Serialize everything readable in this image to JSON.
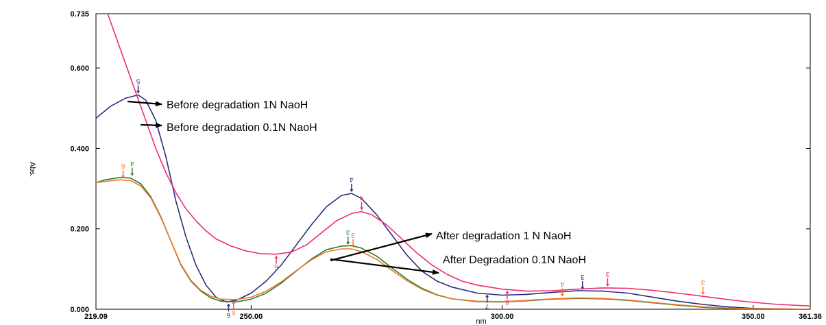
{
  "chart_data": {
    "type": "line",
    "xlabel": "nm",
    "ylabel": "Abs.",
    "xlim": [
      219.09,
      361.36
    ],
    "ylim": [
      0.0,
      0.735
    ],
    "x_ticks": [
      {
        "value": 219.09,
        "label": "219.09"
      },
      {
        "value": 250.0,
        "label": "250.00"
      },
      {
        "value": 300.0,
        "label": "300.00"
      },
      {
        "value": 350.0,
        "label": "350.00"
      },
      {
        "value": 361.36,
        "label": "361.36"
      }
    ],
    "y_ticks": [
      {
        "value": 0.0,
        "label": "0.000"
      },
      {
        "value": 0.2,
        "label": "0.200"
      },
      {
        "value": 0.4,
        "label": "0.400"
      },
      {
        "value": 0.6,
        "label": "0.600"
      },
      {
        "value": 0.735,
        "label": "0.735"
      }
    ],
    "grid": false,
    "series": [
      {
        "color": "#2b2b7a",
        "points": [
          [
            219.09,
            0.475
          ],
          [
            222,
            0.505
          ],
          [
            225,
            0.525
          ],
          [
            227.5,
            0.533
          ],
          [
            229,
            0.52
          ],
          [
            231,
            0.47
          ],
          [
            233,
            0.38
          ],
          [
            235,
            0.27
          ],
          [
            237,
            0.18
          ],
          [
            239,
            0.11
          ],
          [
            241,
            0.06
          ],
          [
            243,
            0.03
          ],
          [
            245,
            0.018
          ],
          [
            247,
            0.022
          ],
          [
            250,
            0.04
          ],
          [
            253,
            0.07
          ],
          [
            256,
            0.11
          ],
          [
            259,
            0.16
          ],
          [
            262,
            0.21
          ],
          [
            265,
            0.255
          ],
          [
            268,
            0.283
          ],
          [
            270,
            0.288
          ],
          [
            272,
            0.275
          ],
          [
            275,
            0.235
          ],
          [
            278,
            0.185
          ],
          [
            281,
            0.135
          ],
          [
            284,
            0.095
          ],
          [
            287,
            0.07
          ],
          [
            290,
            0.055
          ],
          [
            295,
            0.04
          ],
          [
            300,
            0.035
          ],
          [
            305,
            0.037
          ],
          [
            310,
            0.042
          ],
          [
            315,
            0.046
          ],
          [
            320,
            0.045
          ],
          [
            325,
            0.04
          ],
          [
            330,
            0.03
          ],
          [
            335,
            0.02
          ],
          [
            340,
            0.012
          ],
          [
            345,
            0.006
          ],
          [
            350,
            0.002
          ],
          [
            355,
            0.001
          ],
          [
            361.36,
            0.0
          ]
        ]
      },
      {
        "color": "#f02a73",
        "points": [
          [
            219.09,
            0.8
          ],
          [
            221,
            0.75
          ],
          [
            223,
            0.68
          ],
          [
            225,
            0.61
          ],
          [
            227,
            0.54
          ],
          [
            229,
            0.47
          ],
          [
            231,
            0.4
          ],
          [
            233,
            0.34
          ],
          [
            235,
            0.29
          ],
          [
            237,
            0.25
          ],
          [
            239,
            0.22
          ],
          [
            241,
            0.195
          ],
          [
            243,
            0.175
          ],
          [
            246,
            0.157
          ],
          [
            249,
            0.145
          ],
          [
            252,
            0.138
          ],
          [
            255,
            0.137
          ],
          [
            258,
            0.142
          ],
          [
            261,
            0.16
          ],
          [
            264,
            0.19
          ],
          [
            267,
            0.22
          ],
          [
            270,
            0.238
          ],
          [
            272,
            0.243
          ],
          [
            274,
            0.235
          ],
          [
            277,
            0.21
          ],
          [
            280,
            0.175
          ],
          [
            283,
            0.14
          ],
          [
            286,
            0.11
          ],
          [
            289,
            0.087
          ],
          [
            292,
            0.07
          ],
          [
            295,
            0.06
          ],
          [
            300,
            0.05
          ],
          [
            305,
            0.045
          ],
          [
            310,
            0.046
          ],
          [
            315,
            0.05
          ],
          [
            320,
            0.053
          ],
          [
            325,
            0.052
          ],
          [
            330,
            0.047
          ],
          [
            335,
            0.04
          ],
          [
            340,
            0.032
          ],
          [
            345,
            0.024
          ],
          [
            350,
            0.017
          ],
          [
            355,
            0.012
          ],
          [
            361.36,
            0.008
          ]
        ]
      },
      {
        "color": "#2a7a2a",
        "points": [
          [
            219.09,
            0.315
          ],
          [
            221,
            0.322
          ],
          [
            224,
            0.328
          ],
          [
            226,
            0.326
          ],
          [
            228,
            0.312
          ],
          [
            230,
            0.28
          ],
          [
            232,
            0.23
          ],
          [
            234,
            0.17
          ],
          [
            236,
            0.11
          ],
          [
            238,
            0.07
          ],
          [
            240,
            0.045
          ],
          [
            242,
            0.028
          ],
          [
            244,
            0.02
          ],
          [
            247,
            0.018
          ],
          [
            250,
            0.025
          ],
          [
            253,
            0.04
          ],
          [
            256,
            0.065
          ],
          [
            259,
            0.095
          ],
          [
            262,
            0.125
          ],
          [
            265,
            0.148
          ],
          [
            268,
            0.157
          ],
          [
            270,
            0.158
          ],
          [
            272,
            0.152
          ],
          [
            275,
            0.132
          ],
          [
            278,
            0.103
          ],
          [
            281,
            0.075
          ],
          [
            284,
            0.052
          ],
          [
            287,
            0.036
          ],
          [
            290,
            0.026
          ],
          [
            295,
            0.019
          ],
          [
            300,
            0.018
          ],
          [
            305,
            0.021
          ],
          [
            310,
            0.025
          ],
          [
            315,
            0.027
          ],
          [
            320,
            0.026
          ],
          [
            325,
            0.022
          ],
          [
            330,
            0.016
          ],
          [
            335,
            0.01
          ],
          [
            340,
            0.005
          ],
          [
            345,
            0.002
          ],
          [
            350,
            0.001
          ],
          [
            361.36,
            0.0
          ]
        ]
      },
      {
        "color": "#f07828",
        "points": [
          [
            219.09,
            0.315
          ],
          [
            221,
            0.318
          ],
          [
            224,
            0.322
          ],
          [
            226,
            0.32
          ],
          [
            228,
            0.307
          ],
          [
            230,
            0.277
          ],
          [
            232,
            0.228
          ],
          [
            234,
            0.17
          ],
          [
            236,
            0.112
          ],
          [
            238,
            0.072
          ],
          [
            240,
            0.047
          ],
          [
            242,
            0.032
          ],
          [
            244,
            0.025
          ],
          [
            247,
            0.024
          ],
          [
            250,
            0.03
          ],
          [
            253,
            0.045
          ],
          [
            256,
            0.068
          ],
          [
            259,
            0.096
          ],
          [
            262,
            0.123
          ],
          [
            265,
            0.143
          ],
          [
            268,
            0.15
          ],
          [
            270,
            0.15
          ],
          [
            272,
            0.143
          ],
          [
            275,
            0.124
          ],
          [
            278,
            0.097
          ],
          [
            281,
            0.071
          ],
          [
            284,
            0.05
          ],
          [
            287,
            0.035
          ],
          [
            290,
            0.026
          ],
          [
            295,
            0.02
          ],
          [
            300,
            0.019
          ],
          [
            305,
            0.022
          ],
          [
            310,
            0.026
          ],
          [
            315,
            0.028
          ],
          [
            320,
            0.027
          ],
          [
            325,
            0.023
          ],
          [
            330,
            0.017
          ],
          [
            335,
            0.011
          ],
          [
            340,
            0.006
          ],
          [
            345,
            0.003
          ],
          [
            350,
            0.001
          ],
          [
            361.36,
            0.0
          ]
        ]
      }
    ],
    "peak_markers": [
      {
        "x": 227.5,
        "y": 0.533,
        "label": "5",
        "color": "#2b2b7a",
        "dir": "down"
      },
      {
        "x": 224.5,
        "y": 0.322,
        "label": "6",
        "color": "#f07828",
        "dir": "down"
      },
      {
        "x": 226.3,
        "y": 0.328,
        "label": "4",
        "color": "#2a7a2a",
        "dir": "down"
      },
      {
        "x": 270,
        "y": 0.288,
        "label": "4",
        "color": "#2b2b7a",
        "dir": "down"
      },
      {
        "x": 272,
        "y": 0.243,
        "label": "4",
        "color": "#f02a73",
        "dir": "down"
      },
      {
        "x": 269.3,
        "y": 0.157,
        "label": "3",
        "color": "#2a7a2a",
        "dir": "down"
      },
      {
        "x": 270.3,
        "y": 0.15,
        "label": "3",
        "color": "#f07828",
        "dir": "down"
      },
      {
        "x": 316,
        "y": 0.046,
        "label": "3",
        "color": "#2b2b7a",
        "dir": "down"
      },
      {
        "x": 312,
        "y": 0.028,
        "label": "4",
        "color": "#f07828",
        "dir": "down"
      },
      {
        "x": 321,
        "y": 0.053,
        "label": "3",
        "color": "#f02a73",
        "dir": "down"
      },
      {
        "x": 340,
        "y": 0.032,
        "label": "3",
        "color": "#f07828",
        "dir": "down"
      },
      {
        "x": 255,
        "y": 0.137,
        "label": "6",
        "color": "#f02a73",
        "dir": "up"
      },
      {
        "x": 245.5,
        "y": 0.018,
        "label": "6",
        "color": "#2b2b7a",
        "dir": "up"
      },
      {
        "x": 246.5,
        "y": 0.024,
        "label": "6",
        "color": "#f07828",
        "dir": "up"
      },
      {
        "x": 297,
        "y": 0.04,
        "label": "7",
        "color": "#2b2b7a",
        "dir": "up"
      },
      {
        "x": 301,
        "y": 0.05,
        "label": "8",
        "color": "#f02a73",
        "dir": "up"
      }
    ],
    "annotations": [
      {
        "text": "Before degradation 1N NaoH"
      },
      {
        "text": "Before degradation 0.1N NaoH"
      },
      {
        "text": "After degradation 1 N NaoH"
      },
      {
        "text": "After Degradation 0.1N NaoH"
      }
    ]
  }
}
